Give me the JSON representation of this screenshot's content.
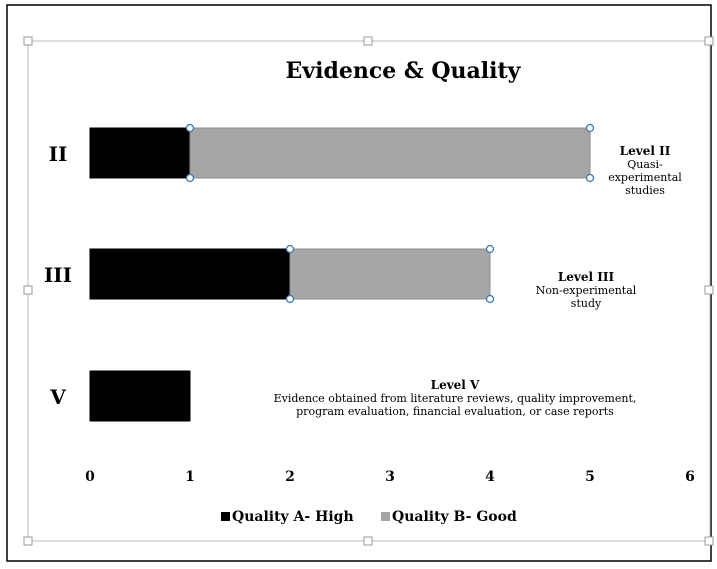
{
  "chart_data": {
    "type": "bar",
    "orientation": "horizontal",
    "stacked": true,
    "title": "Evidence & Quality",
    "categories": [
      "II",
      "III",
      "V"
    ],
    "series": [
      {
        "name": "Quality A- High",
        "color": "#000000",
        "values": [
          1,
          2,
          1
        ]
      },
      {
        "name": "Quality B- Good",
        "color": "#a6a6a6",
        "values": [
          4,
          2,
          0
        ]
      }
    ],
    "xlim": [
      0,
      6
    ],
    "xticks": [
      "0",
      "1",
      "2",
      "3",
      "4",
      "5",
      "6"
    ],
    "grid": false,
    "legend_position": "bottom",
    "annotations": [
      {
        "category": "II",
        "lines": [
          "Level II",
          "Quasi-",
          "experimental",
          "studies"
        ]
      },
      {
        "category": "III",
        "lines": [
          "Level III",
          "Non-experimental",
          "study"
        ]
      },
      {
        "category": "V",
        "lines": [
          "Level V",
          "Evidence obtained from literature reviews, quality improvement,",
          "program evaluation, financial evaluation, or case reports"
        ]
      }
    ]
  }
}
